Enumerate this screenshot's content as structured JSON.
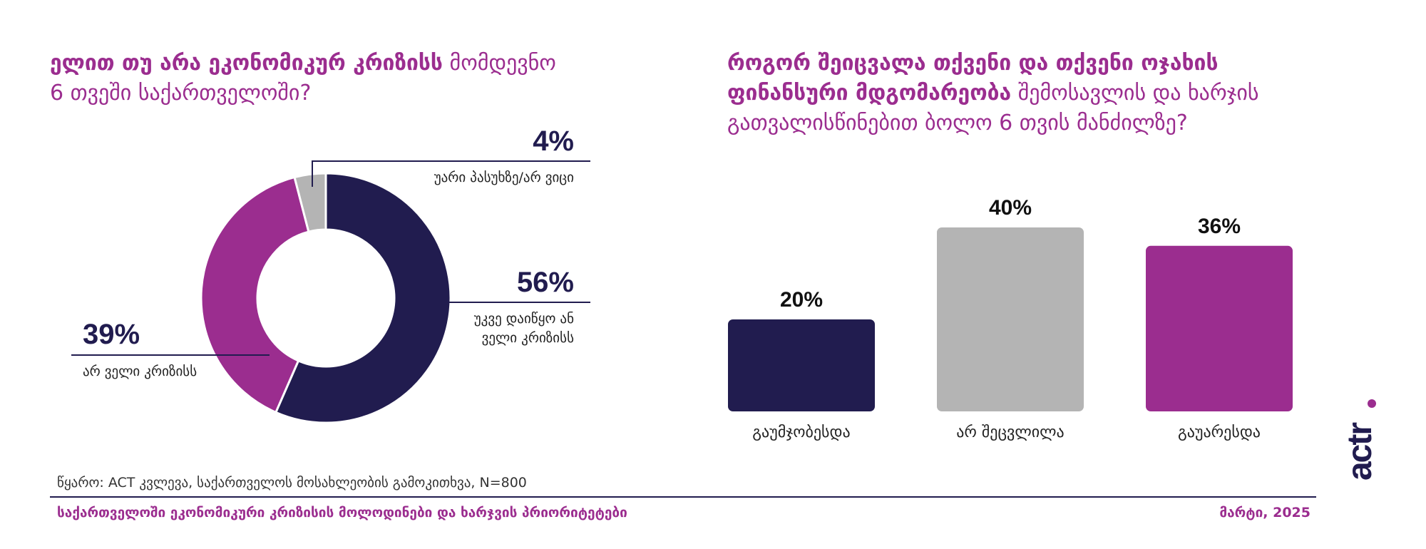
{
  "left_question": {
    "bold": "ელით თუ არა ეკონომიკურ კრიზისს",
    "rest_line1": " მომდევნო",
    "line2": "6 თვეში საქართველოში?"
  },
  "right_question": {
    "line1_bold": "როგორ შეიცვალა თქვენი და თქვენი ოჯახის",
    "line2_bold": "ფინანსური მდგომარეობა",
    "line2_rest": " შემოსავლის და ხარჯის",
    "line3": "გათვალისწინებით ბოლო 6 თვის მანძილზე?"
  },
  "donut_labels": {
    "dk_pct": "4%",
    "dk_text": "უარი  პასუხზე/არ ვიცი",
    "already_pct": "56%",
    "already_line1": "უკვე დაიწყო ან",
    "already_line2": "ველი კრიზისს",
    "no_pct": "39%",
    "no_text": "არ ველი კრიზისს"
  },
  "bar_labels": [
    "20%",
    "40%",
    "36%"
  ],
  "source": "წყარო: ACT კვლევა, საქართველოს მოსახლეობის გამოკითხვა, N=800",
  "footer": {
    "left": "საქართველოში ეკონომიკური კრიზისის მოლოდინები და ხარჯვის პრიორიტეტები",
    "right": "მარტი, 2025"
  },
  "logo_text": "ACTR",
  "colors": {
    "navy": "#211c4f",
    "purple": "#9b2d8f",
    "gray": "#b4b4b4"
  },
  "chart_data": [
    {
      "type": "pie",
      "title": "ელით თუ არა ეკონომიკურ კრიზისს მომდევნო 6 თვეში საქართველოში?",
      "slices": [
        {
          "label": "უკვე დაიწყო ან ველი კრიზისს",
          "value": 56,
          "color": "#211c4f"
        },
        {
          "label": "არ ველი კრიზისს",
          "value": 39,
          "color": "#9b2d8f"
        },
        {
          "label": "უარი  პასუხზე/არ ვიცი",
          "value": 4,
          "color": "#b4b4b4"
        }
      ],
      "unit": "%"
    },
    {
      "type": "bar",
      "title": "როგორ შეიცვალა თქვენი და თქვენი ოჯახის ფინანსური მდგომარეობა შემოსავლის და ხარჯის გათვალისწინებით ბოლო 6 თვის მანძილზე?",
      "categories": [
        "გაუმჯობესდა",
        "არ შეცვლილა",
        "გაუარესდა"
      ],
      "values": [
        20,
        40,
        36
      ],
      "colors": [
        "#211c4f",
        "#b4b4b4",
        "#9b2d8f"
      ],
      "unit": "%",
      "ylim": [
        0,
        40
      ]
    }
  ]
}
